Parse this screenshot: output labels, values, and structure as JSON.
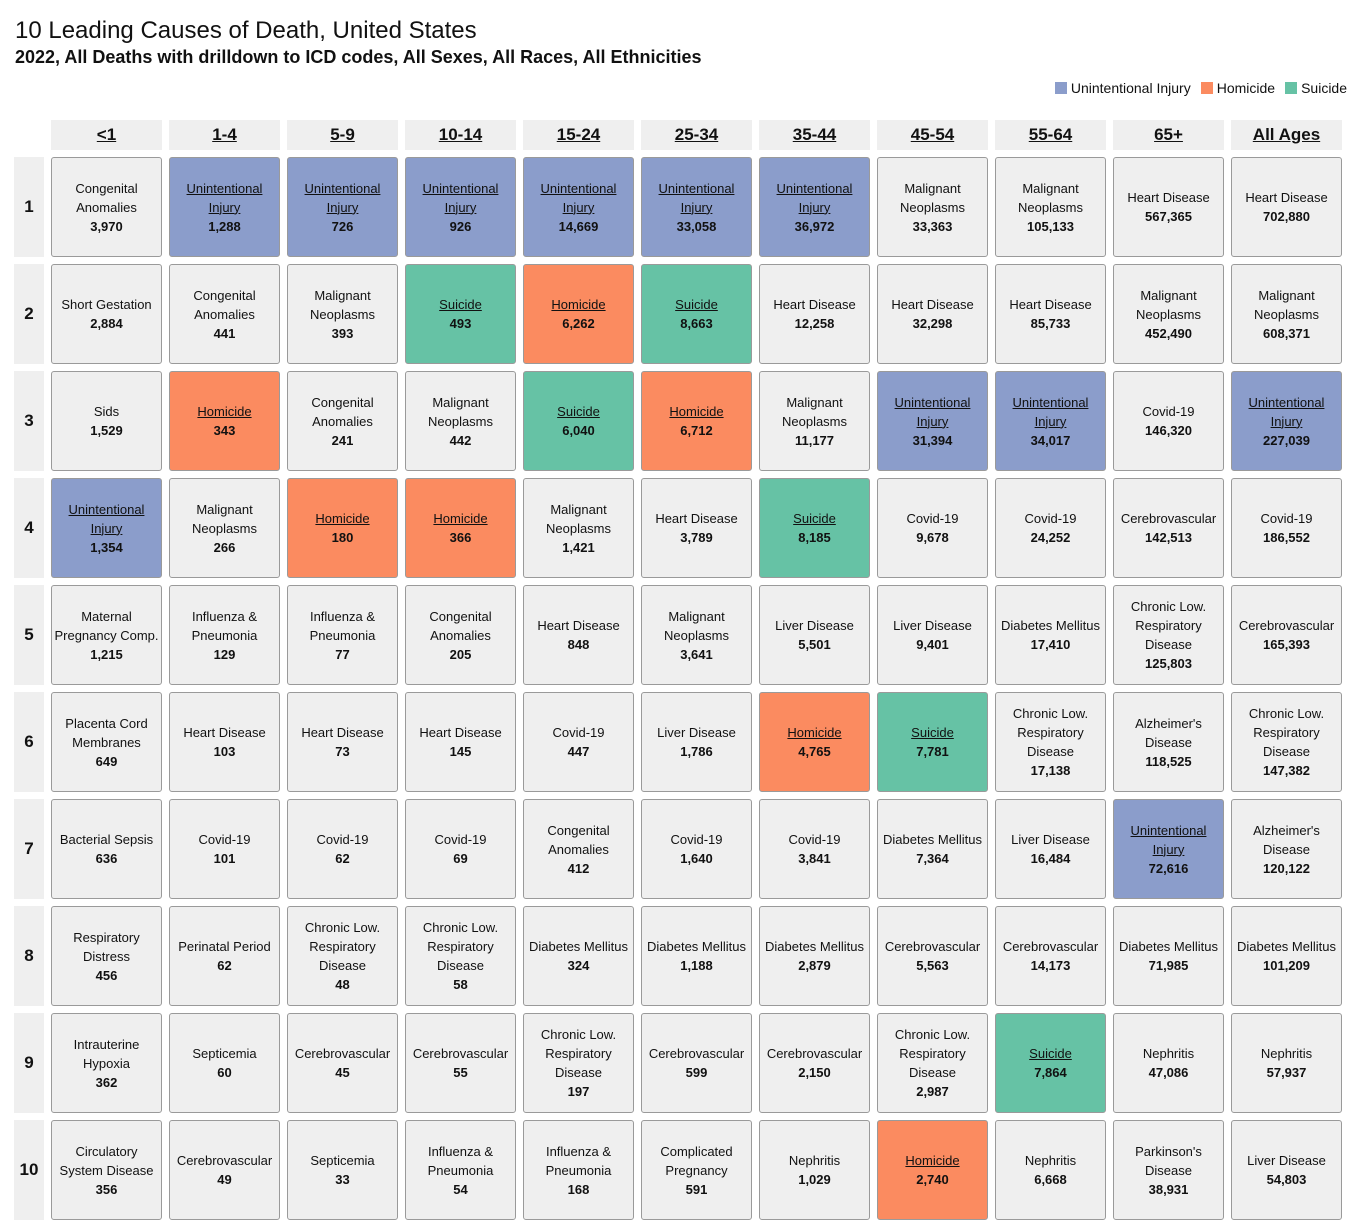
{
  "title": "10 Leading Causes of Death, United States",
  "subtitle": "2022, All Deaths with drilldown to ICD codes, All Sexes, All Races, All Ethnicities",
  "colors": {
    "unintentional": "#8b9dcb",
    "homicide": "#fb8b60",
    "suicide": "#66c2a5",
    "default": "#efefef"
  },
  "chart_data": {
    "type": "table",
    "title": "10 Leading Causes of Death, United States",
    "legend": [
      {
        "label": "Unintentional Injury",
        "key": "unintentional"
      },
      {
        "label": "Homicide",
        "key": "homicide"
      },
      {
        "label": "Suicide",
        "key": "suicide"
      }
    ],
    "legend_position": "top-right",
    "columns": [
      "<1",
      "1-4",
      "5-9",
      "10-14",
      "15-24",
      "25-34",
      "35-44",
      "45-54",
      "55-64",
      "65+",
      "All Ages"
    ],
    "rows": [
      "1",
      "2",
      "3",
      "4",
      "5",
      "6",
      "7",
      "8",
      "9",
      "10"
    ],
    "cells": [
      [
        {
          "name": "Congenital Anomalies",
          "value": "3,970",
          "cat": ""
        },
        {
          "name": "Unintentional Injury",
          "value": "1,288",
          "cat": "unintentional"
        },
        {
          "name": "Unintentional Injury",
          "value": "726",
          "cat": "unintentional"
        },
        {
          "name": "Unintentional Injury",
          "value": "926",
          "cat": "unintentional"
        },
        {
          "name": "Unintentional Injury",
          "value": "14,669",
          "cat": "unintentional"
        },
        {
          "name": "Unintentional Injury",
          "value": "33,058",
          "cat": "unintentional"
        },
        {
          "name": "Unintentional Injury",
          "value": "36,972",
          "cat": "unintentional"
        },
        {
          "name": "Malignant Neoplasms",
          "value": "33,363",
          "cat": ""
        },
        {
          "name": "Malignant Neoplasms",
          "value": "105,133",
          "cat": ""
        },
        {
          "name": "Heart Disease",
          "value": "567,365",
          "cat": ""
        },
        {
          "name": "Heart Disease",
          "value": "702,880",
          "cat": ""
        }
      ],
      [
        {
          "name": "Short Gestation",
          "value": "2,884",
          "cat": ""
        },
        {
          "name": "Congenital Anomalies",
          "value": "441",
          "cat": ""
        },
        {
          "name": "Malignant Neoplasms",
          "value": "393",
          "cat": ""
        },
        {
          "name": "Suicide",
          "value": "493",
          "cat": "suicide"
        },
        {
          "name": "Homicide",
          "value": "6,262",
          "cat": "homicide"
        },
        {
          "name": "Suicide",
          "value": "8,663",
          "cat": "suicide"
        },
        {
          "name": "Heart Disease",
          "value": "12,258",
          "cat": ""
        },
        {
          "name": "Heart Disease",
          "value": "32,298",
          "cat": ""
        },
        {
          "name": "Heart Disease",
          "value": "85,733",
          "cat": ""
        },
        {
          "name": "Malignant Neoplasms",
          "value": "452,490",
          "cat": ""
        },
        {
          "name": "Malignant Neoplasms",
          "value": "608,371",
          "cat": ""
        }
      ],
      [
        {
          "name": "Sids",
          "value": "1,529",
          "cat": ""
        },
        {
          "name": "Homicide",
          "value": "343",
          "cat": "homicide"
        },
        {
          "name": "Congenital Anomalies",
          "value": "241",
          "cat": ""
        },
        {
          "name": "Malignant Neoplasms",
          "value": "442",
          "cat": ""
        },
        {
          "name": "Suicide",
          "value": "6,040",
          "cat": "suicide"
        },
        {
          "name": "Homicide",
          "value": "6,712",
          "cat": "homicide"
        },
        {
          "name": "Malignant Neoplasms",
          "value": "11,177",
          "cat": ""
        },
        {
          "name": "Unintentional Injury",
          "value": "31,394",
          "cat": "unintentional"
        },
        {
          "name": "Unintentional Injury",
          "value": "34,017",
          "cat": "unintentional"
        },
        {
          "name": "Covid-19",
          "value": "146,320",
          "cat": ""
        },
        {
          "name": "Unintentional Injury",
          "value": "227,039",
          "cat": "unintentional"
        }
      ],
      [
        {
          "name": "Unintentional Injury",
          "value": "1,354",
          "cat": "unintentional"
        },
        {
          "name": "Malignant Neoplasms",
          "value": "266",
          "cat": ""
        },
        {
          "name": "Homicide",
          "value": "180",
          "cat": "homicide"
        },
        {
          "name": "Homicide",
          "value": "366",
          "cat": "homicide"
        },
        {
          "name": "Malignant Neoplasms",
          "value": "1,421",
          "cat": ""
        },
        {
          "name": "Heart Disease",
          "value": "3,789",
          "cat": ""
        },
        {
          "name": "Suicide",
          "value": "8,185",
          "cat": "suicide"
        },
        {
          "name": "Covid-19",
          "value": "9,678",
          "cat": ""
        },
        {
          "name": "Covid-19",
          "value": "24,252",
          "cat": ""
        },
        {
          "name": "Cerebrovascular",
          "value": "142,513",
          "cat": ""
        },
        {
          "name": "Covid-19",
          "value": "186,552",
          "cat": ""
        }
      ],
      [
        {
          "name": "Maternal Pregnancy Comp.",
          "value": "1,215",
          "cat": ""
        },
        {
          "name": "Influenza & Pneumonia",
          "value": "129",
          "cat": ""
        },
        {
          "name": "Influenza & Pneumonia",
          "value": "77",
          "cat": ""
        },
        {
          "name": "Congenital Anomalies",
          "value": "205",
          "cat": ""
        },
        {
          "name": "Heart Disease",
          "value": "848",
          "cat": ""
        },
        {
          "name": "Malignant Neoplasms",
          "value": "3,641",
          "cat": ""
        },
        {
          "name": "Liver Disease",
          "value": "5,501",
          "cat": ""
        },
        {
          "name": "Liver Disease",
          "value": "9,401",
          "cat": ""
        },
        {
          "name": "Diabetes Mellitus",
          "value": "17,410",
          "cat": ""
        },
        {
          "name": "Chronic Low. Respiratory Disease",
          "value": "125,803",
          "cat": ""
        },
        {
          "name": "Cerebrovascular",
          "value": "165,393",
          "cat": ""
        }
      ],
      [
        {
          "name": "Placenta Cord Membranes",
          "value": "649",
          "cat": ""
        },
        {
          "name": "Heart Disease",
          "value": "103",
          "cat": ""
        },
        {
          "name": "Heart Disease",
          "value": "73",
          "cat": ""
        },
        {
          "name": "Heart Disease",
          "value": "145",
          "cat": ""
        },
        {
          "name": "Covid-19",
          "value": "447",
          "cat": ""
        },
        {
          "name": "Liver Disease",
          "value": "1,786",
          "cat": ""
        },
        {
          "name": "Homicide",
          "value": "4,765",
          "cat": "homicide"
        },
        {
          "name": "Suicide",
          "value": "7,781",
          "cat": "suicide"
        },
        {
          "name": "Chronic Low. Respiratory Disease",
          "value": "17,138",
          "cat": ""
        },
        {
          "name": "Alzheimer's Disease",
          "value": "118,525",
          "cat": ""
        },
        {
          "name": "Chronic Low. Respiratory Disease",
          "value": "147,382",
          "cat": ""
        }
      ],
      [
        {
          "name": "Bacterial Sepsis",
          "value": "636",
          "cat": ""
        },
        {
          "name": "Covid-19",
          "value": "101",
          "cat": ""
        },
        {
          "name": "Covid-19",
          "value": "62",
          "cat": ""
        },
        {
          "name": "Covid-19",
          "value": "69",
          "cat": ""
        },
        {
          "name": "Congenital Anomalies",
          "value": "412",
          "cat": ""
        },
        {
          "name": "Covid-19",
          "value": "1,640",
          "cat": ""
        },
        {
          "name": "Covid-19",
          "value": "3,841",
          "cat": ""
        },
        {
          "name": "Diabetes Mellitus",
          "value": "7,364",
          "cat": ""
        },
        {
          "name": "Liver Disease",
          "value": "16,484",
          "cat": ""
        },
        {
          "name": "Unintentional Injury",
          "value": "72,616",
          "cat": "unintentional"
        },
        {
          "name": "Alzheimer's Disease",
          "value": "120,122",
          "cat": ""
        }
      ],
      [
        {
          "name": "Respiratory Distress",
          "value": "456",
          "cat": ""
        },
        {
          "name": "Perinatal Period",
          "value": "62",
          "cat": ""
        },
        {
          "name": "Chronic Low. Respiratory Disease",
          "value": "48",
          "cat": ""
        },
        {
          "name": "Chronic Low. Respiratory Disease",
          "value": "58",
          "cat": ""
        },
        {
          "name": "Diabetes Mellitus",
          "value": "324",
          "cat": ""
        },
        {
          "name": "Diabetes Mellitus",
          "value": "1,188",
          "cat": ""
        },
        {
          "name": "Diabetes Mellitus",
          "value": "2,879",
          "cat": ""
        },
        {
          "name": "Cerebrovascular",
          "value": "5,563",
          "cat": ""
        },
        {
          "name": "Cerebrovascular",
          "value": "14,173",
          "cat": ""
        },
        {
          "name": "Diabetes Mellitus",
          "value": "71,985",
          "cat": ""
        },
        {
          "name": "Diabetes Mellitus",
          "value": "101,209",
          "cat": ""
        }
      ],
      [
        {
          "name": "Intrauterine Hypoxia",
          "value": "362",
          "cat": ""
        },
        {
          "name": "Septicemia",
          "value": "60",
          "cat": ""
        },
        {
          "name": "Cerebrovascular",
          "value": "45",
          "cat": ""
        },
        {
          "name": "Cerebrovascular",
          "value": "55",
          "cat": ""
        },
        {
          "name": "Chronic Low. Respiratory Disease",
          "value": "197",
          "cat": ""
        },
        {
          "name": "Cerebrovascular",
          "value": "599",
          "cat": ""
        },
        {
          "name": "Cerebrovascular",
          "value": "2,150",
          "cat": ""
        },
        {
          "name": "Chronic Low. Respiratory Disease",
          "value": "2,987",
          "cat": ""
        },
        {
          "name": "Suicide",
          "value": "7,864",
          "cat": "suicide"
        },
        {
          "name": "Nephritis",
          "value": "47,086",
          "cat": ""
        },
        {
          "name": "Nephritis",
          "value": "57,937",
          "cat": ""
        }
      ],
      [
        {
          "name": "Circulatory System Disease",
          "value": "356",
          "cat": ""
        },
        {
          "name": "Cerebrovascular",
          "value": "49",
          "cat": ""
        },
        {
          "name": "Septicemia",
          "value": "33",
          "cat": ""
        },
        {
          "name": "Influenza & Pneumonia",
          "value": "54",
          "cat": ""
        },
        {
          "name": "Influenza & Pneumonia",
          "value": "168",
          "cat": ""
        },
        {
          "name": "Complicated Pregnancy",
          "value": "591",
          "cat": ""
        },
        {
          "name": "Nephritis",
          "value": "1,029",
          "cat": ""
        },
        {
          "name": "Homicide",
          "value": "2,740",
          "cat": "homicide"
        },
        {
          "name": "Nephritis",
          "value": "6,668",
          "cat": ""
        },
        {
          "name": "Parkinson's Disease",
          "value": "38,931",
          "cat": ""
        },
        {
          "name": "Liver Disease",
          "value": "54,803",
          "cat": ""
        }
      ]
    ]
  }
}
